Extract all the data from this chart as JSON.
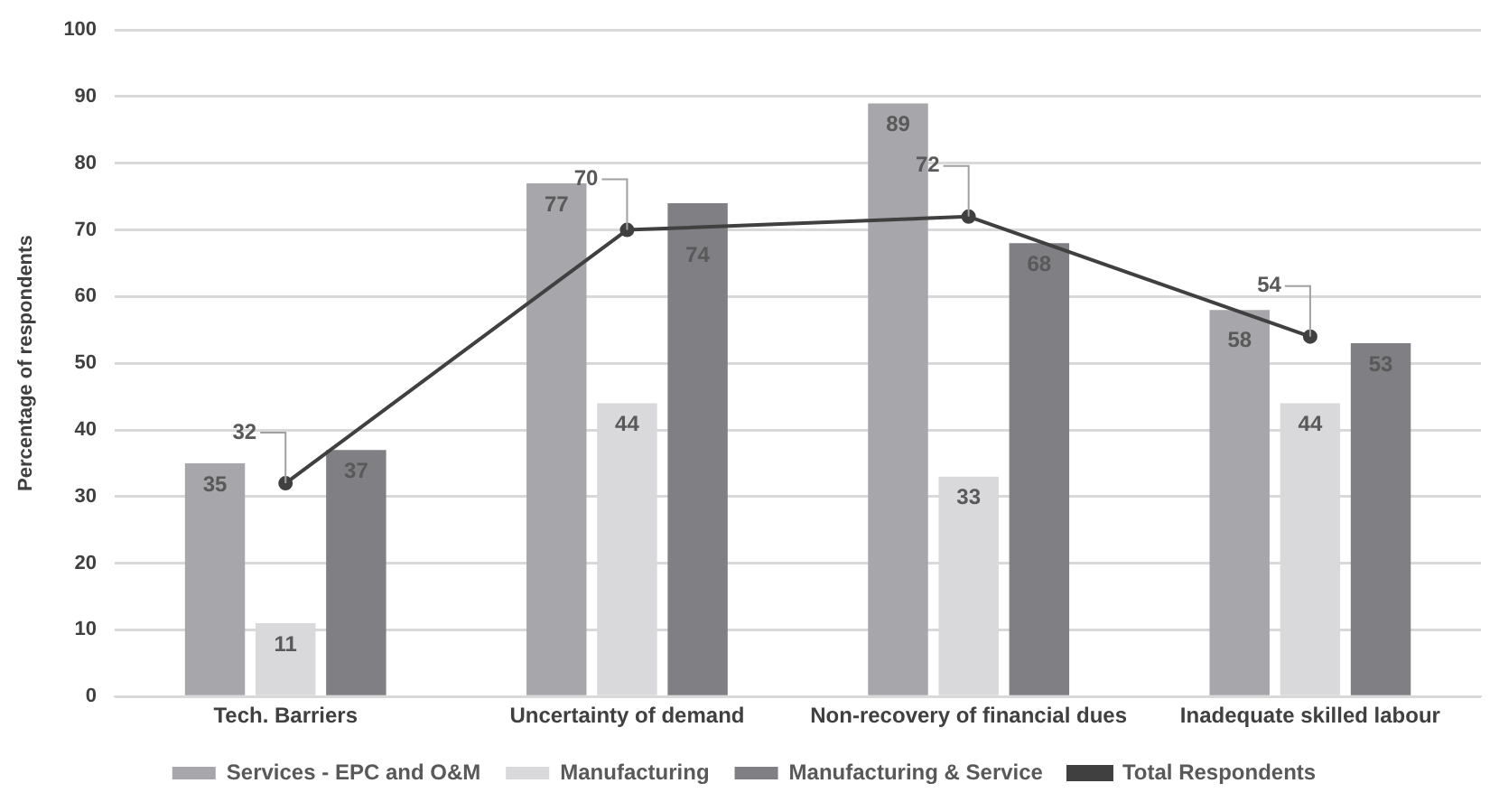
{
  "chart_data": {
    "type": "bar",
    "ylabel": "Percentage of respondents",
    "categories": [
      "Tech. Barriers",
      "Uncertainty of demand",
      "Non-recovery of financial dues",
      "Inadequate skilled labour"
    ],
    "series": [
      {
        "name": "Services - EPC and O&M",
        "color": "#a6a6ab",
        "values": [
          35,
          77,
          89,
          58
        ]
      },
      {
        "name": "Manufacturing",
        "color": "#d9d9db",
        "values": [
          11,
          44,
          33,
          44
        ]
      },
      {
        "name": "Manufacturing & Service",
        "color": "#7f7f84",
        "values": [
          37,
          74,
          68,
          53
        ]
      },
      {
        "name": "Total Respondents",
        "type": "line",
        "color": "#404040",
        "values": [
          32,
          70,
          72,
          54
        ]
      }
    ],
    "ylim": [
      0,
      100
    ],
    "yticks": [
      0,
      10,
      20,
      30,
      40,
      50,
      60,
      70,
      80,
      90,
      100
    ],
    "grid": "y",
    "legend": "bottom",
    "marker": "circle",
    "line_style": "solid",
    "data_labels": true
  }
}
